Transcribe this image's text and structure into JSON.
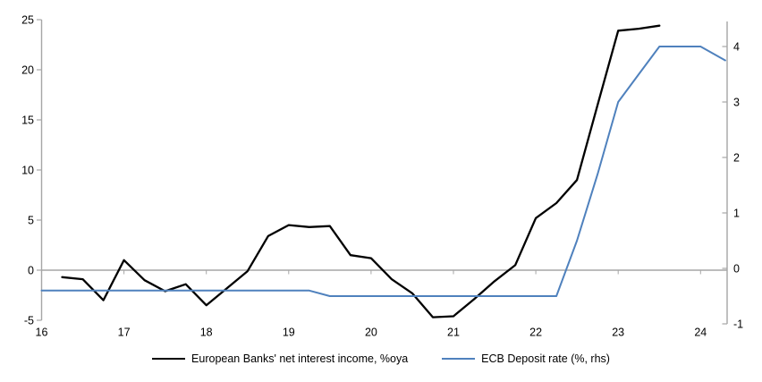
{
  "chart_data": {
    "type": "line",
    "title": "",
    "x_axis": {
      "ticks": [
        16,
        17,
        18,
        19,
        20,
        21,
        22,
        23,
        24
      ],
      "range": [
        16,
        24.3
      ]
    },
    "left_axis": {
      "ticks": [
        25,
        20,
        15,
        10,
        5,
        0,
        -5
      ],
      "range": [
        -5,
        25
      ]
    },
    "right_axis": {
      "ticks": [
        4,
        3,
        2,
        1,
        0,
        -1
      ],
      "range": [
        -1,
        4.5
      ]
    },
    "grid": "zero-line-only",
    "legend_position": "bottom",
    "series": [
      {
        "name": "European Banks' net interest income, %oya",
        "axis": "left",
        "color": "#000000",
        "width": 2.3,
        "x": [
          16.25,
          16.5,
          16.75,
          17.0,
          17.25,
          17.5,
          17.75,
          18.0,
          18.25,
          18.5,
          18.75,
          19.0,
          19.25,
          19.5,
          19.75,
          20.0,
          20.25,
          20.5,
          20.75,
          21.0,
          21.25,
          21.5,
          21.75,
          22.0,
          22.25,
          22.5,
          22.75,
          23.0,
          23.25,
          23.5
        ],
        "values": [
          -0.7,
          -0.9,
          -3.0,
          1.0,
          -1.0,
          -2.1,
          -1.4,
          -3.5,
          -1.8,
          -0.1,
          3.4,
          4.5,
          4.3,
          4.4,
          1.5,
          1.2,
          -0.9,
          -2.3,
          -4.7,
          -4.6,
          -2.9,
          -1.1,
          0.5,
          5.2,
          6.7,
          9.0,
          16.5,
          23.9,
          24.1,
          24.4
        ]
      },
      {
        "name": "ECB Deposit rate (%, rhs)",
        "axis": "right",
        "color": "#4f81bd",
        "width": 2,
        "x": [
          16.0,
          16.25,
          16.5,
          16.75,
          17.0,
          17.25,
          17.5,
          17.75,
          18.0,
          18.25,
          18.5,
          18.75,
          19.0,
          19.25,
          19.5,
          19.75,
          20.0,
          20.25,
          20.5,
          20.75,
          21.0,
          21.25,
          21.5,
          21.75,
          22.0,
          22.25,
          22.5,
          22.75,
          23.0,
          23.25,
          23.5,
          23.75,
          24.0,
          24.3
        ],
        "values": [
          -0.4,
          -0.4,
          -0.4,
          -0.4,
          -0.4,
          -0.4,
          -0.4,
          -0.4,
          -0.4,
          -0.4,
          -0.4,
          -0.4,
          -0.4,
          -0.4,
          -0.5,
          -0.5,
          -0.5,
          -0.5,
          -0.5,
          -0.5,
          -0.5,
          -0.5,
          -0.5,
          -0.5,
          -0.5,
          -0.5,
          0.5,
          1.7,
          3.0,
          3.5,
          4.0,
          4.0,
          4.0,
          3.75
        ]
      }
    ]
  },
  "colors": {
    "background": "#ffffff",
    "axis": "#a6a6a6",
    "text": "#000000",
    "series_nii": "#000000",
    "series_ecb": "#4f81bd"
  }
}
